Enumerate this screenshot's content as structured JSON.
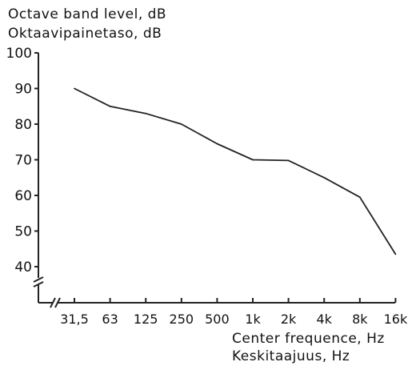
{
  "chart_data": {
    "type": "line",
    "ylabel_lines": [
      "Octave band level, dB",
      "Oktaavipainetaso, dB"
    ],
    "xlabel_lines": [
      "Center frequence, Hz",
      "Keskitaajuus, Hz"
    ],
    "categories": [
      "31,5",
      "63",
      "125",
      "250",
      "500",
      "1k",
      "2k",
      "4k",
      "8k",
      "16k"
    ],
    "yticks": [
      100,
      90,
      80,
      70,
      60,
      50,
      40
    ],
    "ylim": [
      40,
      100
    ],
    "axis_break": true,
    "grid": false,
    "series": [
      {
        "values": [
          90,
          85,
          83,
          80,
          74.5,
          70,
          69.8,
          65,
          59.5,
          43.5
        ]
      }
    ],
    "colors": {
      "line": "#222222",
      "text": "#111111"
    }
  }
}
